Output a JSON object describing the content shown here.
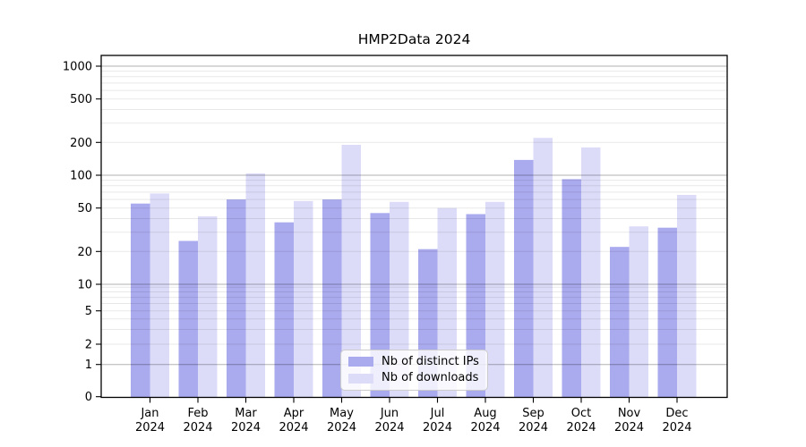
{
  "chart_data": {
    "type": "bar",
    "title": "HMP2Data 2024",
    "categories": [
      "Jan 2024",
      "Feb 2024",
      "Mar 2024",
      "Apr 2024",
      "May 2024",
      "Jun 2024",
      "Jul 2024",
      "Aug 2024",
      "Sep 2024",
      "Oct 2024",
      "Nov 2024",
      "Dec 2024"
    ],
    "series": [
      {
        "name": "Nb of distinct IPs",
        "color": "#aaaaee",
        "values": [
          55,
          25,
          60,
          37,
          60,
          45,
          21,
          44,
          138,
          92,
          22,
          33
        ]
      },
      {
        "name": "Nb of downloads",
        "color": "#dcdcf8",
        "values": [
          68,
          42,
          104,
          58,
          190,
          57,
          50,
          57,
          220,
          180,
          34,
          66
        ]
      }
    ],
    "xlabel": "",
    "ylabel": "",
    "yscale": "symlog",
    "y_ticks": [
      0,
      1,
      2,
      5,
      10,
      20,
      50,
      100,
      200,
      500,
      1000
    ],
    "ylim": [
      0,
      1250
    ],
    "grid": "horizontal major and minor gridlines",
    "legend_position": "lower center inside plot",
    "colors": {
      "major_grid": "#b3b3b3",
      "minor_grid": "#e8e8e8",
      "axis": "#000000",
      "background": "#ffffff"
    }
  }
}
